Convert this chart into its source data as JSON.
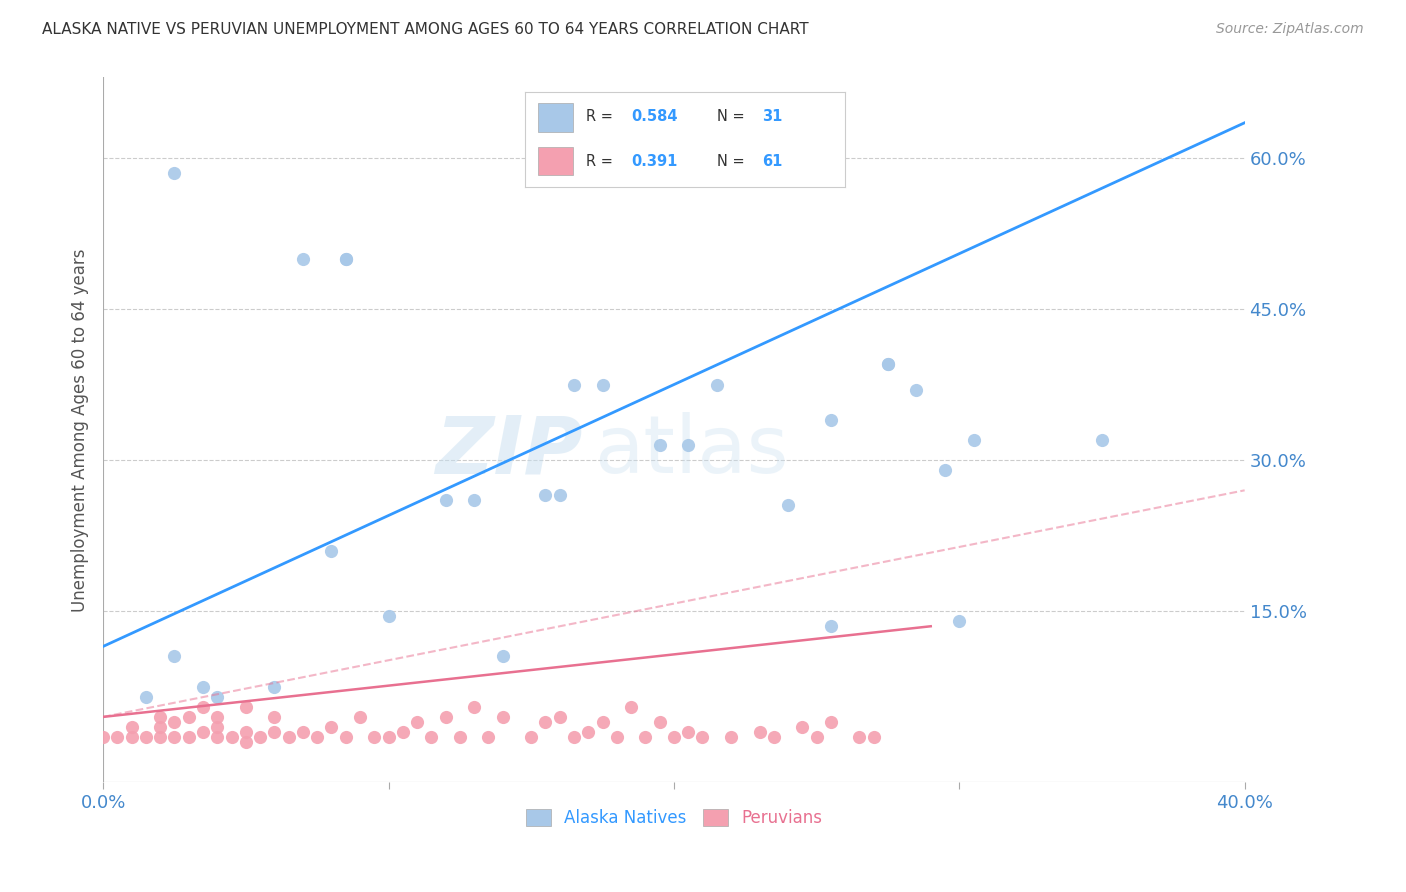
{
  "title": "ALASKA NATIVE VS PERUVIAN UNEMPLOYMENT AMONG AGES 60 TO 64 YEARS CORRELATION CHART",
  "source": "Source: ZipAtlas.com",
  "ylabel": "Unemployment Among Ages 60 to 64 years",
  "right_yticks": [
    "60.0%",
    "45.0%",
    "30.0%",
    "15.0%"
  ],
  "right_ytick_vals": [
    0.6,
    0.45,
    0.3,
    0.15
  ],
  "xlim": [
    0.0,
    0.4
  ],
  "ylim": [
    -0.02,
    0.68
  ],
  "alaska_color": "#a8c8e8",
  "peruvian_color": "#f4a0b0",
  "alaska_line_color": "#3399ff",
  "peruvian_line_color": "#e87090",
  "watermark_zip": "ZIP",
  "watermark_atlas": "atlas",
  "alaska_scatter_x": [
    0.025,
    0.07,
    0.085,
    0.085,
    0.12,
    0.13,
    0.14,
    0.155,
    0.165,
    0.175,
    0.195,
    0.205,
    0.215,
    0.24,
    0.255,
    0.275,
    0.275,
    0.285,
    0.295,
    0.015,
    0.025,
    0.035,
    0.04,
    0.06,
    0.08,
    0.1,
    0.16,
    0.255,
    0.3,
    0.305,
    0.35
  ],
  "alaska_scatter_y": [
    0.585,
    0.5,
    0.5,
    0.5,
    0.26,
    0.26,
    0.105,
    0.265,
    0.375,
    0.375,
    0.315,
    0.315,
    0.375,
    0.255,
    0.34,
    0.395,
    0.395,
    0.37,
    0.29,
    0.065,
    0.105,
    0.075,
    0.065,
    0.075,
    0.21,
    0.145,
    0.265,
    0.135,
    0.14,
    0.32,
    0.32
  ],
  "peruvian_scatter_x": [
    0.0,
    0.005,
    0.01,
    0.01,
    0.015,
    0.02,
    0.02,
    0.02,
    0.025,
    0.025,
    0.03,
    0.03,
    0.035,
    0.035,
    0.04,
    0.04,
    0.04,
    0.045,
    0.05,
    0.05,
    0.05,
    0.055,
    0.06,
    0.06,
    0.065,
    0.07,
    0.075,
    0.08,
    0.085,
    0.09,
    0.095,
    0.1,
    0.105,
    0.11,
    0.115,
    0.12,
    0.125,
    0.13,
    0.135,
    0.14,
    0.15,
    0.155,
    0.16,
    0.165,
    0.17,
    0.175,
    0.18,
    0.185,
    0.19,
    0.195,
    0.2,
    0.205,
    0.21,
    0.22,
    0.23,
    0.235,
    0.245,
    0.25,
    0.255,
    0.265,
    0.27
  ],
  "peruvian_scatter_y": [
    0.025,
    0.025,
    0.025,
    0.035,
    0.025,
    0.025,
    0.035,
    0.045,
    0.025,
    0.04,
    0.025,
    0.045,
    0.03,
    0.055,
    0.025,
    0.035,
    0.045,
    0.025,
    0.02,
    0.03,
    0.055,
    0.025,
    0.03,
    0.045,
    0.025,
    0.03,
    0.025,
    0.035,
    0.025,
    0.045,
    0.025,
    0.025,
    0.03,
    0.04,
    0.025,
    0.045,
    0.025,
    0.055,
    0.025,
    0.045,
    0.025,
    0.04,
    0.045,
    0.025,
    0.03,
    0.04,
    0.025,
    0.055,
    0.025,
    0.04,
    0.025,
    0.03,
    0.025,
    0.025,
    0.03,
    0.025,
    0.035,
    0.025,
    0.04,
    0.025,
    0.025
  ],
  "alaska_line_x": [
    0.0,
    0.4
  ],
  "alaska_line_y": [
    0.115,
    0.635
  ],
  "peruvian_solid_line_x": [
    0.0,
    0.29
  ],
  "peruvian_solid_line_y": [
    0.045,
    0.135
  ],
  "peruvian_dash_line_x": [
    0.0,
    0.4
  ],
  "peruvian_dash_line_y": [
    0.045,
    0.27
  ],
  "background_color": "#ffffff",
  "grid_color": "#cccccc",
  "title_color": "#333333",
  "axis_label_color": "#4488cc",
  "right_axis_color": "#4488cc"
}
